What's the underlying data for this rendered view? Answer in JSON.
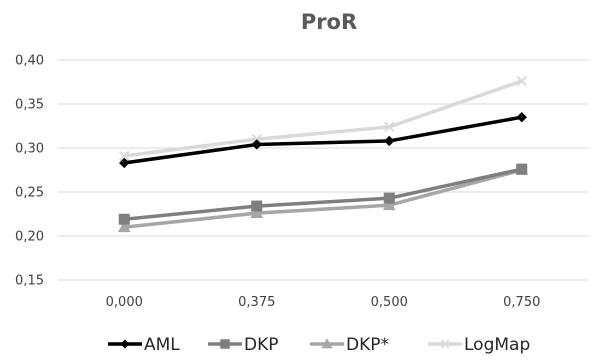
{
  "chart_data": {
    "type": "line",
    "title": "ProR",
    "xlabel": "",
    "ylabel": "",
    "categories": [
      "0,000",
      "0,375",
      "0,500",
      "0,750"
    ],
    "y_ticks": [
      "0,15",
      "0,20",
      "0,25",
      "0,30",
      "0,35",
      "0,40"
    ],
    "ylim": [
      0.15,
      0.4
    ],
    "grid": true,
    "legend_position": "bottom",
    "series": [
      {
        "name": "AML",
        "values": [
          0.283,
          0.304,
          0.308,
          0.335
        ],
        "color": "#000000",
        "marker": "diamond"
      },
      {
        "name": "DKP",
        "values": [
          0.219,
          0.234,
          0.243,
          0.276
        ],
        "color": "#7f7f7f",
        "marker": "square"
      },
      {
        "name": "DKP*",
        "values": [
          0.21,
          0.226,
          0.235,
          0.275
        ],
        "color": "#a6a6a6",
        "marker": "triangle"
      },
      {
        "name": "LogMap",
        "values": [
          0.291,
          0.31,
          0.324,
          0.376
        ],
        "color": "#d9d9d9",
        "marker": "x"
      }
    ]
  }
}
